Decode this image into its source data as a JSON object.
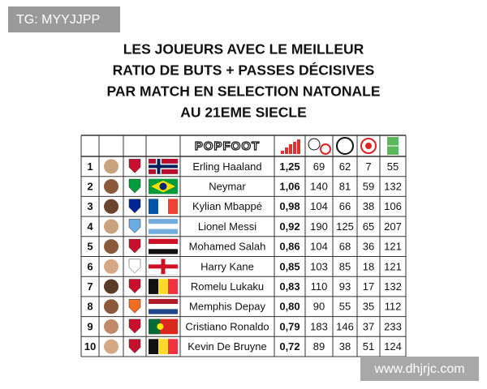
{
  "watermark_top": "TG: MYYJJPP",
  "title": [
    "LES JOUEURS AVEC LE MEILLEUR",
    "RATIO DE BUTS + PASSES DÉCISIVES",
    "PAR MATCH EN SELECTION NATONALE",
    "AU 21EME SIECLE"
  ],
  "table": {
    "header_logo": "POPFOOT",
    "rows": [
      [
        1,
        "Erling Haaland",
        "1,25",
        69,
        62,
        7,
        55
      ],
      [
        2,
        "Neymar",
        "1,06",
        140,
        81,
        59,
        132
      ],
      [
        3,
        "Kylian Mbappé",
        "0,98",
        104,
        66,
        38,
        106
      ],
      [
        4,
        "Lionel Messi",
        "0,92",
        190,
        125,
        65,
        207
      ],
      [
        5,
        "Mohamed Salah",
        "0,86",
        104,
        68,
        36,
        121
      ],
      [
        6,
        "Harry Kane",
        "0,85",
        103,
        85,
        18,
        121
      ],
      [
        7,
        "Romelu Lukaku",
        "0,83",
        110,
        93,
        17,
        132
      ],
      [
        8,
        "Memphis Depay",
        "0,80",
        90,
        55,
        35,
        112
      ],
      [
        9,
        "Cristiano Ronaldo",
        "0,79",
        183,
        146,
        37,
        233
      ],
      [
        10,
        "Kevin De Bruyne",
        "0,72",
        89,
        38,
        51,
        124
      ]
    ]
  },
  "watermark_bottom": "www.dhjrjc.com"
}
